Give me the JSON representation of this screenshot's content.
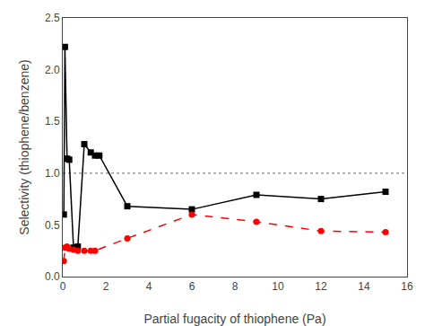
{
  "chart_data": {
    "type": "line",
    "xlabel": "Partial fugacity of thiophene (Pa)",
    "ylabel": "Selectivity (thiophene/benzene)",
    "series": [
      {
        "x": [
          0.05,
          0.1,
          0.2,
          0.3,
          0.5,
          0.7,
          1.0,
          1.3,
          1.5,
          1.7,
          3.0,
          6.0,
          9.0,
          12.0,
          15.0
        ],
        "values": [
          0.6,
          2.22,
          1.14,
          1.13,
          0.28,
          0.29,
          1.28,
          1.2,
          1.17,
          1.17,
          0.68,
          0.65,
          0.79,
          0.75,
          0.82
        ],
        "color": "#000000",
        "marker": "square",
        "line_style": "solid"
      },
      {
        "x": [
          0.05,
          0.1,
          0.2,
          0.3,
          0.5,
          0.7,
          1.0,
          1.3,
          1.5,
          3.0,
          6.0,
          9.0,
          12.0,
          15.0
        ],
        "values": [
          0.15,
          0.28,
          0.29,
          0.27,
          0.26,
          0.25,
          0.25,
          0.25,
          0.25,
          0.37,
          0.6,
          0.53,
          0.44,
          0.43
        ],
        "color": "#ff0000",
        "marker": "circle",
        "line_style": "dashed"
      }
    ],
    "reference_lines": [
      {
        "y": 1.0,
        "color": "#888888",
        "line_style": "dotted"
      }
    ],
    "xlim": [
      0,
      16
    ],
    "ylim": [
      0.0,
      2.5
    ],
    "xticks": [
      0,
      2,
      4,
      6,
      8,
      10,
      12,
      14,
      16
    ],
    "yticks": [
      {
        "value": 0.0,
        "label": "0.0"
      },
      0.5,
      {
        "value": 1.0,
        "label": "1.0"
      },
      1.5,
      {
        "value": 2.0,
        "label": "2.0"
      },
      2.5
    ],
    "grid": false
  }
}
